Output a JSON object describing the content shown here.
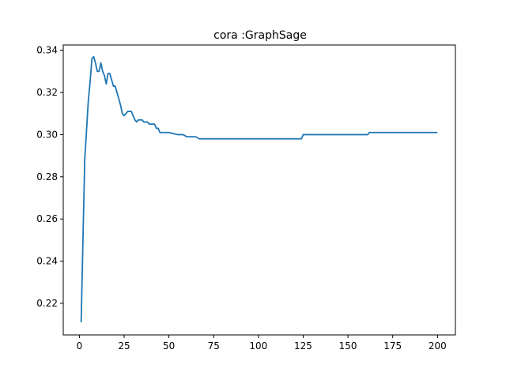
{
  "chart_data": {
    "type": "line",
    "title": "cora :GraphSage",
    "xlabel": "",
    "ylabel": "",
    "xlim": [
      -9,
      210
    ],
    "ylim": [
      0.205,
      0.3425
    ],
    "xticks": [
      0,
      25,
      50,
      75,
      100,
      125,
      150,
      175,
      200
    ],
    "yticks": [
      0.22,
      0.24,
      0.26,
      0.28,
      0.3,
      0.32,
      0.34
    ],
    "ytick_labels": [
      "0.22",
      "0.24",
      "0.26",
      "0.28",
      "0.30",
      "0.32",
      "0.34"
    ],
    "grid": false,
    "series": [
      {
        "color": "#1f77b4",
        "x": [
          1,
          2,
          3,
          4,
          5,
          6,
          7,
          8,
          9,
          10,
          11,
          12,
          13,
          14,
          15,
          16,
          17,
          18,
          19,
          20,
          21,
          22,
          23,
          24,
          25,
          26,
          27,
          28,
          29,
          30,
          31,
          32,
          33,
          34,
          35,
          36,
          37,
          38,
          39,
          40,
          41,
          42,
          43,
          44,
          45,
          50,
          55,
          58,
          60,
          65,
          67,
          70,
          80,
          90,
          100,
          110,
          124,
          125,
          130,
          140,
          150,
          160,
          161,
          162,
          170,
          180,
          190,
          200
        ],
        "y": [
          0.211,
          0.25,
          0.288,
          0.302,
          0.316,
          0.325,
          0.336,
          0.337,
          0.334,
          0.33,
          0.33,
          0.334,
          0.33,
          0.328,
          0.324,
          0.329,
          0.329,
          0.326,
          0.323,
          0.323,
          0.32,
          0.317,
          0.314,
          0.31,
          0.309,
          0.31,
          0.311,
          0.311,
          0.311,
          0.309,
          0.307,
          0.306,
          0.307,
          0.307,
          0.307,
          0.306,
          0.306,
          0.306,
          0.305,
          0.305,
          0.305,
          0.305,
          0.303,
          0.303,
          0.301,
          0.301,
          0.3,
          0.3,
          0.299,
          0.299,
          0.298,
          0.298,
          0.298,
          0.298,
          0.298,
          0.298,
          0.298,
          0.3,
          0.3,
          0.3,
          0.3,
          0.3,
          0.3,
          0.301,
          0.301,
          0.301,
          0.301,
          0.301
        ]
      }
    ]
  }
}
